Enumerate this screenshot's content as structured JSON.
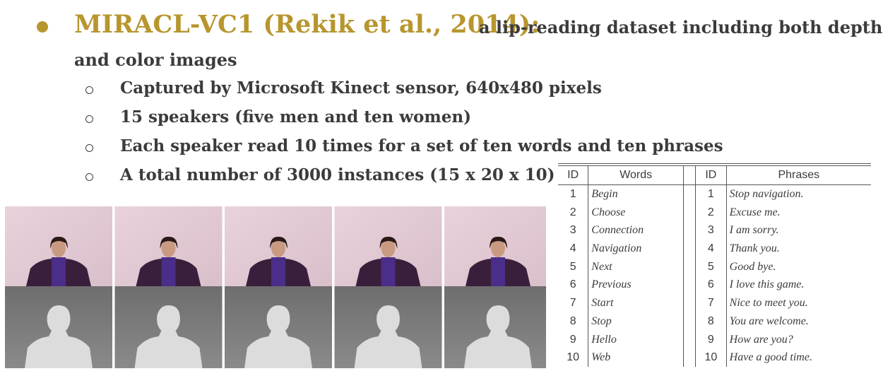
{
  "slide": {
    "title": "MIRACL-VC1 (Rekik et al., 2014):",
    "title_rest": [
      "a lip-reading dataset including both depth",
      "and color images"
    ],
    "bullets": [
      "Captured by Microsoft Kinect sensor, 640x480 pixels",
      "15 speakers (five men and ten women)",
      "Each speaker read 10 times for a set of ten words and ten phrases",
      "A total number of 3000 instances (15 x 20 x 10)"
    ]
  },
  "table": {
    "header": [
      "ID",
      "Words",
      "ID",
      "Phrases"
    ],
    "rows": [
      [
        1,
        "Begin",
        1,
        "Stop navigation."
      ],
      [
        2,
        "Choose",
        2,
        "Excuse me."
      ],
      [
        3,
        "Connection",
        3,
        "I am sorry."
      ],
      [
        4,
        "Navigation",
        4,
        "Thank you."
      ],
      [
        5,
        "Next",
        5,
        "Good bye."
      ],
      [
        6,
        "Previous",
        6,
        "I love this game."
      ],
      [
        7,
        "Start",
        7,
        "Nice to meet you."
      ],
      [
        8,
        "Stop",
        8,
        "You are welcome."
      ],
      [
        9,
        "Hello",
        9,
        "How are you?"
      ],
      [
        10,
        "Web",
        10,
        "Have a good time."
      ]
    ]
  }
}
